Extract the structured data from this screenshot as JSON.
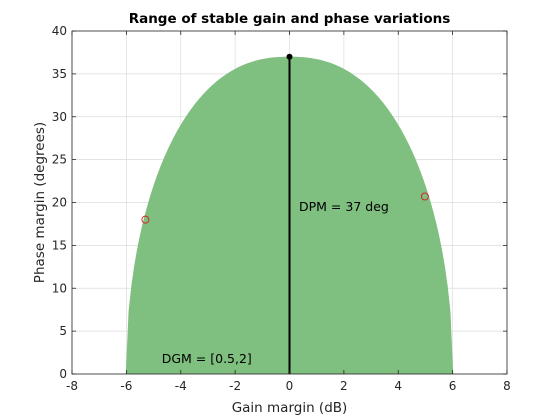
{
  "chart_data": {
    "type": "area",
    "title": "Range of stable gain and phase variations",
    "xlabel": "Gain margin (dB)",
    "ylabel": "Phase margin (degrees)",
    "xlim": [
      -8,
      8
    ],
    "ylim": [
      0,
      40
    ],
    "xticks": [
      "-8",
      "-6",
      "-4",
      "-2",
      "0",
      "2",
      "4",
      "6",
      "8"
    ],
    "yticks": [
      "0",
      "5",
      "10",
      "15",
      "20",
      "25",
      "30",
      "35",
      "40"
    ],
    "grid": true,
    "region": {
      "color": "#7fbf7f",
      "gain_range_db": [
        -6.02,
        6.02
      ],
      "peak_phase_deg": 37
    },
    "vertical_line": {
      "x": 0,
      "y_from": 0,
      "y_to": 37,
      "color": "#000000"
    },
    "peak_marker": {
      "x": 0,
      "y": 37,
      "color": "#000000"
    },
    "markers": [
      {
        "x": -5.3,
        "y": 18,
        "color": "#d62728"
      },
      {
        "x": 4.98,
        "y": 20.7,
        "color": "#d62728"
      }
    ],
    "annotations": [
      {
        "text": "DPM = 37 deg",
        "x": 0.35,
        "y": 19
      },
      {
        "text": "DGM = [0.5,2]",
        "x": -4.7,
        "y": 1.3
      }
    ]
  }
}
